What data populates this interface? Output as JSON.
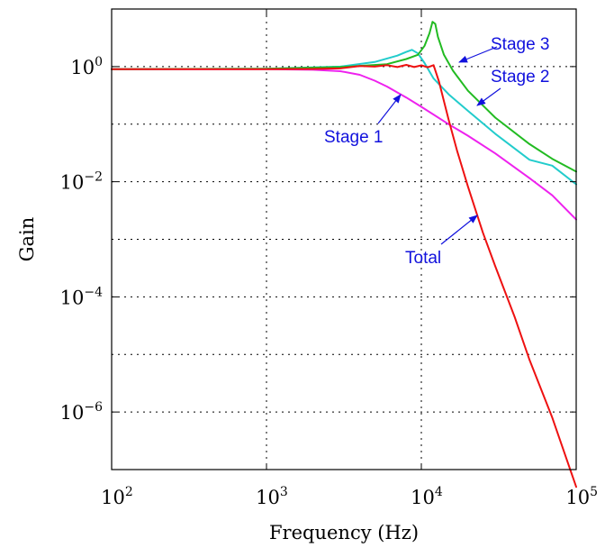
{
  "chart_data": {
    "type": "line",
    "title": "",
    "xlabel": "Frequency (Hz)",
    "ylabel": "Gain",
    "xscale": "log",
    "yscale": "log",
    "xlim": [
      100,
      100000
    ],
    "ylim": [
      1e-07,
      10
    ],
    "grid": true,
    "legend": "none",
    "x_ticks": [
      {
        "base": "10",
        "exp": "2",
        "value": 100
      },
      {
        "base": "10",
        "exp": "3",
        "value": 1000
      },
      {
        "base": "10",
        "exp": "4",
        "value": 10000
      },
      {
        "base": "10",
        "exp": "5",
        "value": 100000
      }
    ],
    "y_ticks": [
      {
        "base": "10",
        "exp": "0",
        "value": 1
      },
      {
        "base": "10",
        "exp": "−2",
        "value": 0.01
      },
      {
        "base": "10",
        "exp": "−4",
        "value": 0.0001
      },
      {
        "base": "10",
        "exp": "−6",
        "value": 1e-06
      }
    ],
    "y_grid_values": [
      10,
      1,
      0.1,
      0.01,
      0.001,
      0.0001,
      1e-05,
      1e-06,
      1e-07
    ],
    "x_grid_values": [
      100,
      1000,
      10000,
      100000
    ],
    "series": [
      {
        "name": "Stage 1",
        "color": "#ee22ee",
        "x": [
          100,
          1000,
          2000,
          3000,
          4000,
          5000,
          6000,
          8000,
          10000,
          15000,
          20000,
          30000,
          50000,
          70000,
          100000
        ],
        "y": [
          0.9,
          0.9,
          0.88,
          0.83,
          0.72,
          0.57,
          0.45,
          0.29,
          0.2,
          0.1,
          0.063,
          0.031,
          0.0115,
          0.0058,
          0.0022
        ]
      },
      {
        "name": "Stage 2",
        "color": "#22cccc",
        "x": [
          100,
          1000,
          3000,
          5000,
          7000,
          8000,
          8700,
          9500,
          10500,
          12000,
          15000,
          20000,
          30000,
          50000,
          70000,
          100000
        ],
        "y": [
          0.9,
          0.92,
          1.0,
          1.2,
          1.55,
          1.8,
          1.95,
          1.7,
          1.15,
          0.62,
          0.33,
          0.17,
          0.068,
          0.024,
          0.019,
          0.009
        ]
      },
      {
        "name": "Stage 3",
        "color": "#22bb22",
        "x": [
          100,
          1000,
          3000,
          6000,
          8000,
          9500,
          10500,
          11300,
          11800,
          12300,
          12800,
          14000,
          16000,
          20000,
          30000,
          50000,
          70000,
          100000
        ],
        "y": [
          0.9,
          0.92,
          0.98,
          1.1,
          1.35,
          1.6,
          2.3,
          3.8,
          6.0,
          5.5,
          3.3,
          1.6,
          0.85,
          0.38,
          0.13,
          0.045,
          0.025,
          0.015
        ]
      },
      {
        "name": "Total",
        "color": "#ee1111",
        "x": [
          100,
          1000,
          2000,
          3000,
          4000,
          5000,
          6000,
          7000,
          8000,
          9000,
          10000,
          11000,
          12000,
          13000,
          14000,
          15000,
          17000,
          20000,
          25000,
          30000,
          40000,
          50000,
          70000,
          100000
        ],
        "y": [
          0.9,
          0.9,
          0.91,
          0.93,
          1.02,
          1.0,
          1.06,
          0.98,
          1.07,
          0.98,
          1.05,
          0.97,
          1.06,
          0.55,
          0.25,
          0.12,
          0.035,
          0.0082,
          0.0013,
          0.00034,
          4.5e-05,
          8e-06,
          8e-07,
          5e-08
        ]
      }
    ],
    "annotations": [
      {
        "text": "Stage 1",
        "color": "#1111dd"
      },
      {
        "text": "Stage 2",
        "color": "#1111dd"
      },
      {
        "text": "Stage 3",
        "color": "#1111dd"
      },
      {
        "text": "Total",
        "color": "#1111dd"
      }
    ]
  }
}
